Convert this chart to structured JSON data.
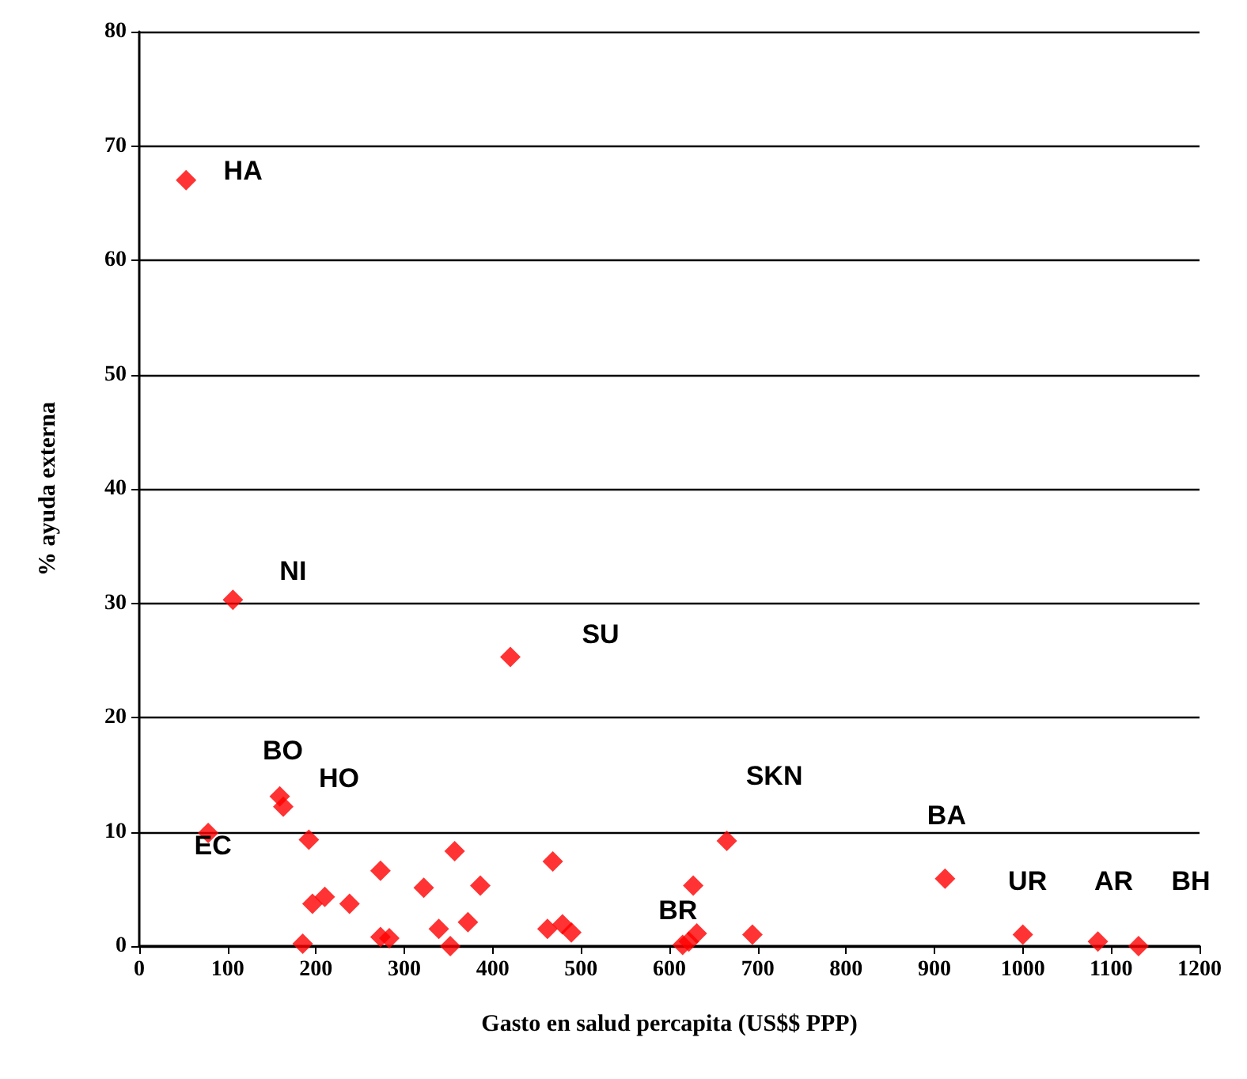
{
  "chart_data": {
    "type": "scatter",
    "xlabel": "Gasto en salud percapita (US$$ PPP)",
    "ylabel": "% ayuda externa",
    "series": [
      {
        "color": "#ff0000",
        "x": [
          53,
          106,
          420,
          78,
          159,
          163,
          192,
          196,
          210,
          238,
          185,
          273,
          273,
          283,
          322,
          339,
          352,
          357,
          372,
          386,
          468,
          462,
          479,
          489,
          665,
          627,
          615,
          622,
          631,
          694,
          912,
          1000,
          1085,
          1131
        ],
        "values": [
          67,
          30.3,
          25.3,
          9.9,
          13.1,
          12.2,
          9.3,
          3.7,
          4.3,
          3.7,
          0.2,
          6.6,
          0.8,
          0.7,
          5.1,
          1.5,
          0,
          8.3,
          2.1,
          5.3,
          7.4,
          1.5,
          1.9,
          1.2,
          9.2,
          5.3,
          0.1,
          0.4,
          1.1,
          1,
          5.9,
          1,
          0.4,
          0
        ]
      }
    ],
    "annotations": [
      {
        "text": "HA",
        "x": 53,
        "y": 67
      },
      {
        "text": "NI",
        "x": 106,
        "y": 30.3
      },
      {
        "text": "SU",
        "x": 420,
        "y": 25.3
      },
      {
        "text": "BO",
        "x": 159,
        "y": 13.1
      },
      {
        "text": "HO",
        "x": 192,
        "y": 9.3
      },
      {
        "text": "EC",
        "x": 78,
        "y": 9.9
      },
      {
        "text": "SKN",
        "x": 665,
        "y": 9.2
      },
      {
        "text": "BR",
        "x": 615,
        "y": 0.1
      },
      {
        "text": "BA",
        "x": 912,
        "y": 5.9
      },
      {
        "text": "UR",
        "x": 1000,
        "y": 1
      },
      {
        "text": "AR",
        "x": 1085,
        "y": 0.4
      },
      {
        "text": "BH",
        "x": 1131,
        "y": 0
      }
    ],
    "xlim": [
      0,
      1200
    ],
    "xticks": [
      0,
      100,
      200,
      300,
      400,
      500,
      600,
      700,
      800,
      900,
      1000,
      1100,
      1200
    ],
    "ylim": [
      0,
      80
    ],
    "yticks": [
      0,
      10,
      20,
      30,
      40,
      50,
      60,
      70,
      80
    ],
    "grid": "y",
    "marker": "diamond"
  }
}
